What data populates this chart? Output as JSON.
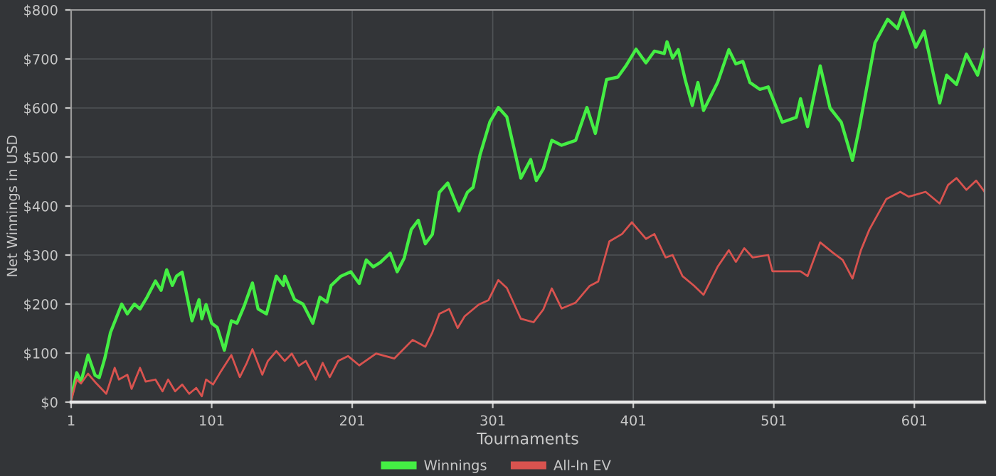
{
  "chart_data": {
    "type": "line",
    "xlabel": "Tournaments",
    "ylabel": "Net Winnings in USD",
    "xlim": [
      1,
      651
    ],
    "xticks": [
      1,
      101,
      201,
      301,
      401,
      501,
      601
    ],
    "ylim": [
      0,
      800
    ],
    "yticks": [
      {
        "value": 0,
        "label": "$0"
      },
      {
        "value": 100,
        "label": "$100"
      },
      {
        "value": 200,
        "label": "$200"
      },
      {
        "value": 300,
        "label": "$300"
      },
      {
        "value": 400,
        "label": "$400"
      },
      {
        "value": 500,
        "label": "$500"
      },
      {
        "value": 600,
        "label": "$600"
      },
      {
        "value": 700,
        "label": "$700"
      },
      {
        "value": 800,
        "label": "$800"
      }
    ],
    "grid": true,
    "legend": "bottom",
    "marker": "none",
    "line_style": "solid",
    "series": [
      {
        "name": "Winnings",
        "color": "#44ee44",
        "x": [
          1,
          5,
          8,
          13,
          18,
          21,
          25,
          29,
          33,
          37,
          41,
          46,
          50,
          55,
          61,
          65,
          69,
          73,
          76,
          80,
          87,
          92,
          94,
          97,
          101,
          105,
          110,
          115,
          119,
          124,
          130,
          134,
          140,
          147,
          152,
          153,
          160,
          166,
          173,
          178,
          183,
          186,
          193,
          200,
          206,
          211,
          216,
          221,
          228,
          233,
          238,
          243,
          248,
          253,
          258,
          263,
          269,
          277,
          283,
          287,
          292,
          299,
          305,
          311,
          321,
          328,
          332,
          337,
          343,
          350,
          360,
          368,
          374,
          382,
          390,
          396,
          403,
          410,
          416,
          423,
          425,
          429,
          433,
          438,
          443,
          447,
          451,
          461,
          469,
          474,
          479,
          484,
          491,
          497,
          507,
          517,
          520,
          525,
          534,
          541,
          549,
          557,
          562,
          573,
          582,
          589,
          593,
          602,
          608,
          619,
          624,
          631,
          638,
          646,
          651
        ],
        "values": [
          8,
          60,
          41,
          96,
          55,
          50,
          90,
          142,
          171,
          200,
          180,
          200,
          190,
          214,
          247,
          228,
          270,
          238,
          257,
          265,
          166,
          209,
          170,
          199,
          161,
          152,
          106,
          166,
          161,
          195,
          243,
          190,
          180,
          257,
          238,
          257,
          209,
          200,
          161,
          214,
          204,
          238,
          257,
          266,
          242,
          290,
          276,
          285,
          304,
          266,
          294,
          352,
          371,
          323,
          342,
          428,
          447,
          390,
          428,
          438,
          505,
          572,
          601,
          582,
          457,
          495,
          452,
          476,
          534,
          524,
          534,
          601,
          548,
          658,
          663,
          687,
          720,
          692,
          716,
          711,
          735,
          702,
          719,
          657,
          605,
          652,
          595,
          652,
          719,
          690,
          695,
          652,
          638,
          643,
          571,
          581,
          619,
          562,
          686,
          600,
          571,
          493,
          562,
          733,
          781,
          762,
          795,
          724,
          757,
          610,
          667,
          648,
          710,
          667,
          719
        ]
      },
      {
        "name": "All-In EV",
        "color": "#d9534f",
        "x": [
          1,
          5,
          8,
          13,
          19,
          26,
          32,
          35,
          41,
          44,
          50,
          54,
          61,
          66,
          70,
          75,
          80,
          85,
          90,
          94,
          97,
          102,
          107,
          115,
          121,
          126,
          130,
          137,
          141,
          147,
          153,
          158,
          163,
          168,
          175,
          180,
          185,
          191,
          198,
          206,
          218,
          231,
          244,
          253,
          258,
          263,
          270,
          276,
          281,
          291,
          298,
          305,
          311,
          321,
          330,
          337,
          343,
          350,
          360,
          370,
          376,
          384,
          393,
          400,
          410,
          416,
          424,
          429,
          436,
          444,
          451,
          461,
          469,
          474,
          480,
          486,
          497,
          500,
          510,
          520,
          525,
          534,
          543,
          550,
          557,
          563,
          569,
          581,
          591,
          597,
          609,
          619,
          625,
          631,
          638,
          645,
          651
        ],
        "values": [
          3,
          46,
          38,
          58,
          38,
          17,
          70,
          46,
          56,
          27,
          70,
          42,
          46,
          22,
          46,
          22,
          36,
          17,
          29,
          12,
          46,
          36,
          60,
          96,
          51,
          80,
          108,
          56,
          84,
          104,
          84,
          99,
          74,
          84,
          46,
          80,
          51,
          84,
          94,
          75,
          99,
          89,
          127,
          113,
          142,
          180,
          190,
          151,
          175,
          199,
          208,
          249,
          233,
          170,
          163,
          189,
          232,
          191,
          203,
          237,
          246,
          328,
          343,
          367,
          333,
          343,
          295,
          300,
          257,
          238,
          219,
          276,
          310,
          286,
          314,
          295,
          300,
          267,
          267,
          267,
          257,
          326,
          305,
          290,
          252,
          310,
          352,
          414,
          429,
          419,
          429,
          405,
          443,
          457,
          433,
          452,
          429
        ]
      }
    ]
  }
}
